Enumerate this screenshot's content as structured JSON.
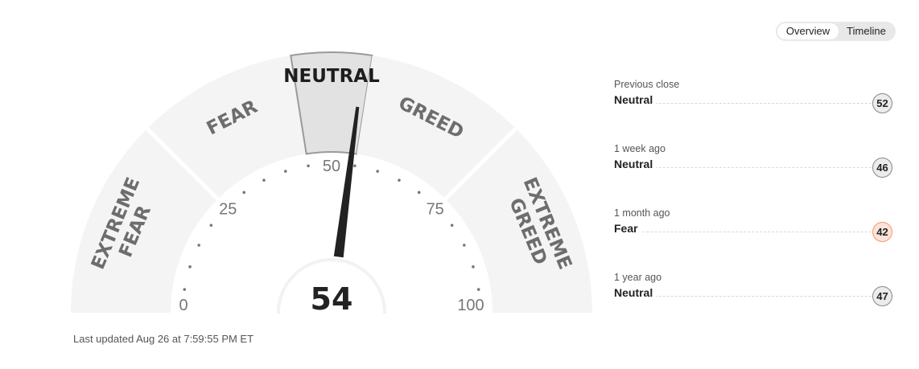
{
  "gauge": {
    "value": 54,
    "segments": [
      {
        "id": "extreme-fear",
        "lines": [
          "EXTREME",
          "FEAR"
        ],
        "from": 0,
        "to": 25
      },
      {
        "id": "fear",
        "lines": [
          "FEAR"
        ],
        "from": 25,
        "to": 45
      },
      {
        "id": "neutral",
        "lines": [
          "NEUTRAL"
        ],
        "from": 45,
        "to": 55
      },
      {
        "id": "greed",
        "lines": [
          "GREED"
        ],
        "from": 55,
        "to": 75
      },
      {
        "id": "extreme-greed",
        "lines": [
          "EXTREME",
          "GREED"
        ],
        "from": 75,
        "to": 100
      }
    ],
    "active_segment": "neutral",
    "tick_labels": [
      "0",
      "25",
      "50",
      "75",
      "100"
    ],
    "colors": {
      "segment": "#f4f4f4",
      "active_segment": "#e2e2e2",
      "active_border": "#9a9a9a",
      "needle": "#222222"
    }
  },
  "last_updated": "Last updated Aug 26 at 7:59:55 PM ET",
  "toggle": {
    "overview": "Overview",
    "timeline": "Timeline",
    "selected": "overview"
  },
  "history": [
    {
      "period": "Previous close",
      "rating": "Neutral",
      "value": "52",
      "tone": "neutral"
    },
    {
      "period": "1 week ago",
      "rating": "Neutral",
      "value": "46",
      "tone": "neutral"
    },
    {
      "period": "1 month ago",
      "rating": "Fear",
      "value": "42",
      "tone": "fear"
    },
    {
      "period": "1 year ago",
      "rating": "Neutral",
      "value": "47",
      "tone": "neutral"
    }
  ]
}
